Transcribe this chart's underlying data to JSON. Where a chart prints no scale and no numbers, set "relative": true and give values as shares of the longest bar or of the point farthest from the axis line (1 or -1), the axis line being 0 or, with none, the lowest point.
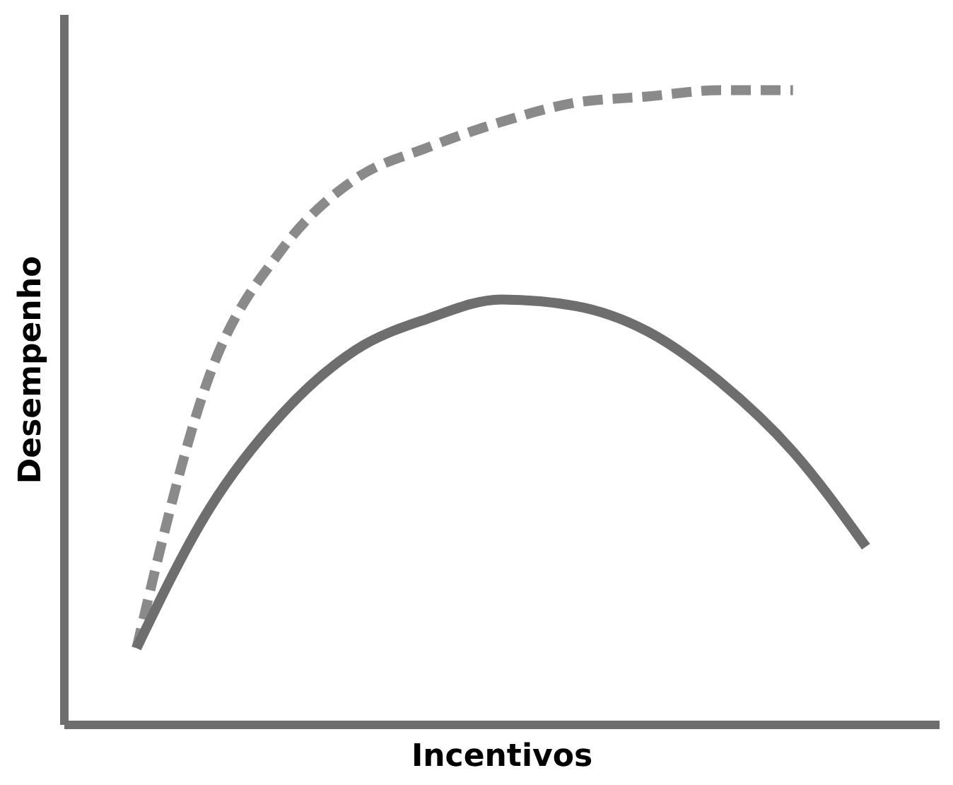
{
  "chart_data": {
    "type": "line",
    "relative": true,
    "xlabel": "Incentivos",
    "ylabel": "Desempenho",
    "categories": [
      null,
      null,
      null,
      null,
      null,
      null,
      null,
      null,
      null,
      null,
      null
    ],
    "grid": false,
    "marker": "none",
    "series": [
      {
        "color": "#8a8a8a",
        "line_style": "dashed",
        "values": [
          0.12,
          0.55,
          0.75,
          0.86,
          0.91,
          0.95,
          0.98,
          0.99,
          1,
          1,
          null
        ]
      },
      {
        "color": "#6e6e6e",
        "line_style": "solid",
        "values": [
          0.12,
          0.34,
          0.49,
          0.59,
          0.64,
          0.67,
          0.66,
          0.62,
          0.54,
          0.43,
          0.28
        ]
      }
    ]
  }
}
